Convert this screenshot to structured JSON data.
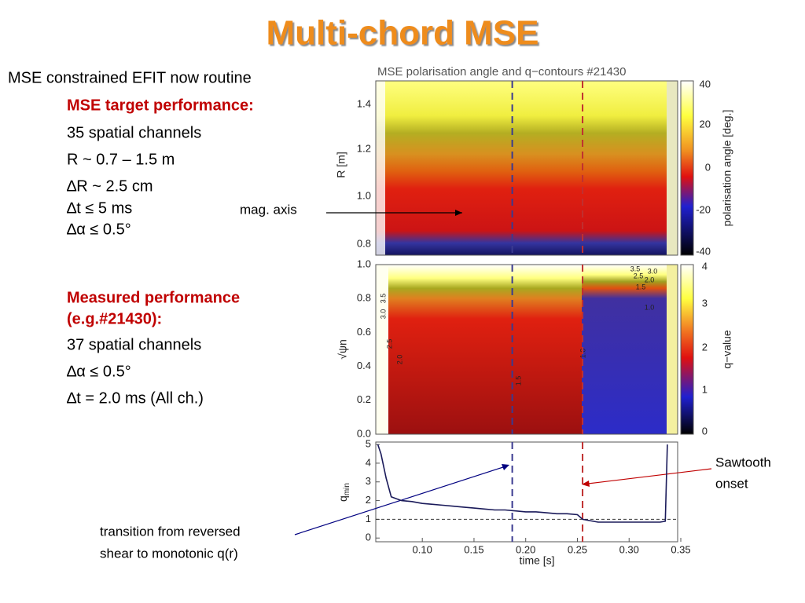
{
  "title": "Multi-chord MSE",
  "intro": "MSE constrained EFIT now routine",
  "target": {
    "heading": "MSE target performance:",
    "items": [
      "35 spatial channels",
      "R ~ 0.7 – 1.5 m",
      "∆R ~ 2.5 cm",
      "∆t ≤ 5 ms",
      "∆α ≤ 0.5°"
    ]
  },
  "measured": {
    "heading": [
      "Measured performance",
      "(e.g.#21430):"
    ],
    "items": [
      "37 spatial channels",
      "∆α ≤ 0.5°",
      "∆t = 2.0 ms (All ch.)"
    ]
  },
  "annotations": {
    "mag_axis": "mag. axis",
    "sawtooth": [
      "Sawtooth",
      "onset"
    ],
    "transition": [
      "transition from reversed",
      "shear to monotonic q(r)"
    ]
  },
  "figure": {
    "title": "MSE polarisation angle and q−contours #21430",
    "angle_panel": {
      "ylabel": "R [m]",
      "yticks": [
        "1.4",
        "1.2",
        "1.0",
        "0.8"
      ],
      "colorbar_label": "polarisation angle [deg.]",
      "colorbar_ticks": [
        "40",
        "20",
        "0",
        "-20",
        "-40"
      ]
    },
    "q_panel": {
      "ylabel": "√ψn",
      "yticks": [
        "1.0",
        "0.8",
        "0.6",
        "0.4",
        "0.2",
        "0.0"
      ],
      "colorbar_label": "q−value",
      "colorbar_ticks": [
        "4",
        "3",
        "2",
        "1",
        "0"
      ],
      "contour_labels": [
        "3.0",
        "3.5",
        "2.5",
        "2.0",
        "1.5",
        "1.0",
        "3.5",
        "3.0",
        "2.5",
        "2.0",
        "1.5",
        "1.0"
      ]
    }
  },
  "chart_data": {
    "type": "line",
    "xlabel": "time [s]",
    "ylabel": {
      "main": "q",
      "sub": "min"
    },
    "x": [
      0.057,
      0.06,
      0.065,
      0.07,
      0.075,
      0.08,
      0.09,
      0.1,
      0.11,
      0.12,
      0.13,
      0.14,
      0.15,
      0.16,
      0.17,
      0.18,
      0.19,
      0.2,
      0.21,
      0.22,
      0.23,
      0.24,
      0.25,
      0.255,
      0.26,
      0.27,
      0.28,
      0.29,
      0.3,
      0.31,
      0.32,
      0.33,
      0.335,
      0.337
    ],
    "values": [
      5,
      4.5,
      3.2,
      2.2,
      2.1,
      2.0,
      1.95,
      1.85,
      1.8,
      1.75,
      1.7,
      1.65,
      1.6,
      1.55,
      1.5,
      1.5,
      1.45,
      1.4,
      1.4,
      1.35,
      1.3,
      1.3,
      1.25,
      1.0,
      0.95,
      0.85,
      0.85,
      0.85,
      0.85,
      0.85,
      0.85,
      0.85,
      0.9,
      5
    ],
    "color": "#1a1a5a",
    "xlim": [
      0.055,
      0.35
    ],
    "ylim": [
      -0.2,
      5.13
    ],
    "xticks": [
      {
        "value": 0.1,
        "label": "0.10"
      },
      {
        "value": 0.15,
        "label": "0.15"
      },
      {
        "value": 0.2,
        "label": "0.20"
      },
      {
        "value": 0.25,
        "label": "0.25"
      },
      {
        "value": 0.3,
        "label": "0.30"
      },
      {
        "value": 0.35,
        "label": "0.35"
      }
    ],
    "yticks": [
      0,
      1,
      2,
      3,
      4,
      5
    ],
    "reference_times": [
      {
        "value": 0.187,
        "color": "#3a3a90"
      },
      {
        "value": 0.255,
        "color": "#c03030"
      }
    ],
    "reference_q": 1
  }
}
